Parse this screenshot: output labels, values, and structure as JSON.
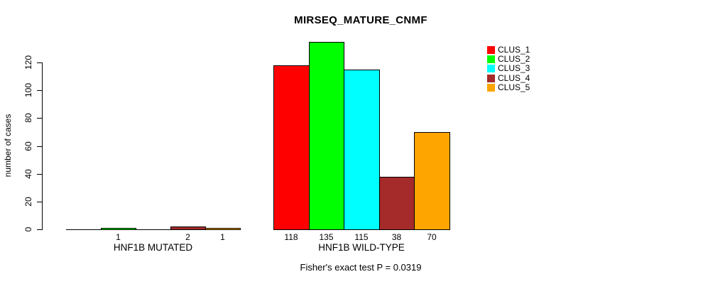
{
  "chart_data": {
    "type": "bar",
    "title": "MIRSEQ_MATURE_CNMF",
    "subtitle": "Fisher's exact test P = 0.0319",
    "ylabel": "number of cases",
    "xlabel": "",
    "yticks": [
      0,
      20,
      40,
      60,
      80,
      100,
      120
    ],
    "ylim": [
      0,
      120
    ],
    "grid": false,
    "bar_border_color": "#000000",
    "categories": [
      "HNF1B MUTATED",
      "HNF1B WILD-TYPE"
    ],
    "series": [
      {
        "name": "CLUS_1",
        "color": "#FF0000",
        "values": [
          0,
          118
        ],
        "value_labels": [
          "",
          "118"
        ]
      },
      {
        "name": "CLUS_2",
        "color": "#00FF00",
        "values": [
          1,
          135
        ],
        "value_labels": [
          "1",
          "135"
        ]
      },
      {
        "name": "CLUS_3",
        "color": "#00FFFF",
        "values": [
          0,
          115
        ],
        "value_labels": [
          "",
          "115"
        ]
      },
      {
        "name": "CLUS_4",
        "color": "#A52A2A",
        "values": [
          2,
          38
        ],
        "value_labels": [
          "2",
          "38"
        ]
      },
      {
        "name": "CLUS_5",
        "color": "#FFA500",
        "values": [
          1,
          70
        ],
        "value_labels": [
          "1",
          "70"
        ]
      }
    ],
    "legend": {
      "position": "right",
      "entries": [
        "CLUS_1",
        "CLUS_2",
        "CLUS_3",
        "CLUS_4",
        "CLUS_5"
      ]
    }
  }
}
